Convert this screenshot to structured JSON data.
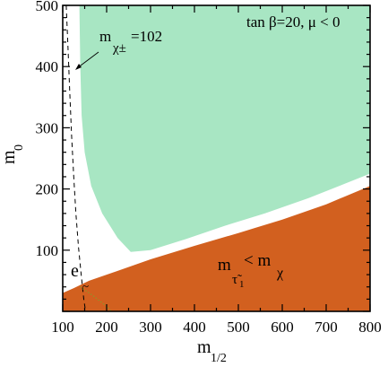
{
  "chart_data": {
    "type": "area",
    "title": "tan  β=20, μ < 0",
    "xlabel": {
      "base": "m",
      "sub": "1/2"
    },
    "ylabel": {
      "base": "m",
      "sub": "0"
    },
    "xlim": [
      100,
      800
    ],
    "ylim": [
      0,
      500
    ],
    "x_ticks": [
      100,
      200,
      300,
      400,
      500,
      600,
      700,
      800
    ],
    "y_ticks": [
      100,
      200,
      300,
      400,
      500
    ],
    "x_tick_labels": [
      "100",
      "200",
      "300",
      "400",
      "500",
      "600",
      "700",
      "800"
    ],
    "y_tick_labels": [
      "100",
      "200",
      "300",
      "400",
      "500"
    ],
    "colors": {
      "green_region": "#a8e6c3",
      "orange_region": "#d2601f",
      "line": "#000000",
      "dotted": "#8a9a2a"
    },
    "regions": [
      {
        "color": "green",
        "x": [
          138,
          800,
          800,
          660,
          560,
          470,
          380,
          300,
          255,
          225,
          190,
          165,
          150,
          143,
          140,
          138
        ],
        "y": [
          500,
          500,
          225,
          185,
          160,
          140,
          118,
          100,
          97,
          120,
          160,
          205,
          260,
          320,
          400,
          500
        ]
      },
      {
        "color": "orange",
        "label": {
          "base": "m",
          "sub": "τ̃",
          "subsub": "1",
          "rel": " < m",
          "base2": "χ"
        },
        "x": [
          100,
          125,
          160,
          220,
          300,
          400,
          500,
          600,
          700,
          800,
          800,
          100
        ],
        "y": [
          30,
          38,
          50,
          65,
          85,
          107,
          128,
          150,
          175,
          205,
          0,
          0
        ]
      }
    ],
    "series": [
      {
        "label": {
          "base": "m",
          "sub": "χ±",
          "value": "=102"
        },
        "x": [
          108,
          112,
          116,
          120,
          125,
          130,
          136,
          142,
          148,
          152
        ],
        "y": [
          500,
          430,
          360,
          290,
          220,
          160,
          105,
          60,
          20,
          0
        ]
      },
      {
        "x": [
          140,
          170,
          200,
          210
        ],
        "y": [
          40,
          25,
          8,
          0
        ]
      }
    ],
    "annotations": [
      {
        "text": "e",
        "x": 117,
        "y": 55
      }
    ]
  }
}
